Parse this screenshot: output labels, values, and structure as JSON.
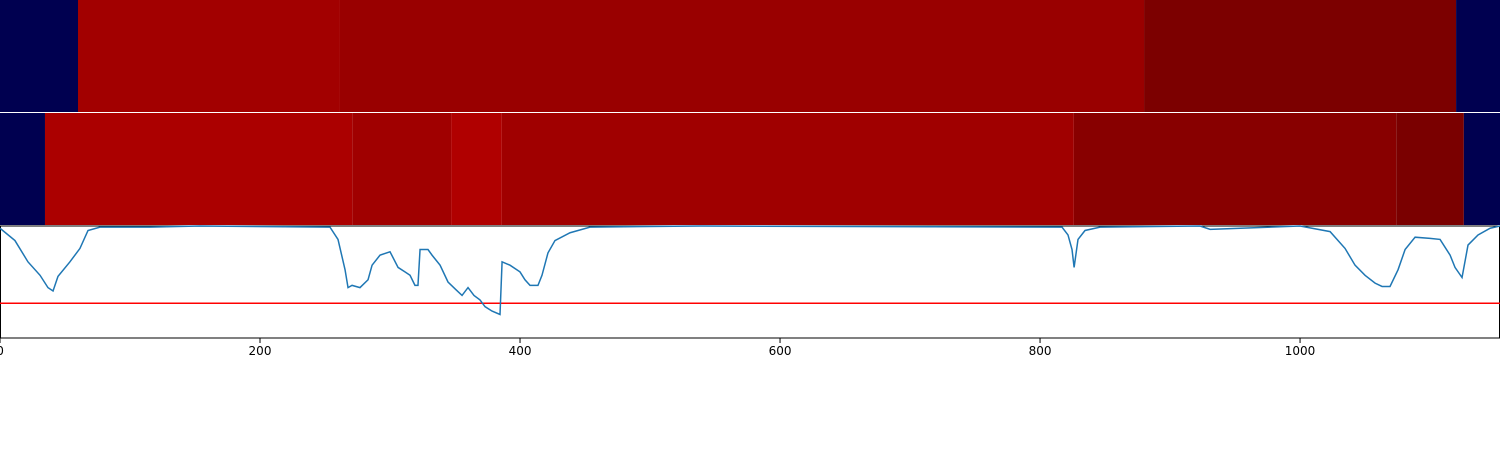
{
  "chart_data": [
    {
      "type": "heatmap",
      "bins": [
        0,
        60,
        261.5,
        880,
        1120,
        1153.8
      ],
      "colors": [
        "#000050",
        "#a20000",
        "#990000",
        "#7c0000",
        "#000050"
      ]
    },
    {
      "type": "heatmap",
      "bins": [
        0,
        34.6,
        271,
        347,
        386,
        826,
        1074,
        1126,
        1153.8
      ],
      "colors": [
        "#000050",
        "#ab0000",
        "#a00000",
        "#b00000",
        "#a00000",
        "#880000",
        "#7a0000",
        "#000050"
      ]
    },
    {
      "type": "line",
      "x": [
        0,
        11.5,
        21.5,
        30.8,
        36.9,
        40.8,
        44.6,
        53.8,
        61.5,
        67.7,
        76.9,
        115.4,
        153.8,
        253.8,
        260,
        265.4,
        267.7,
        270.8,
        276.9,
        283.1,
        286.2,
        292.3,
        300,
        306.2,
        311.5,
        315.4,
        319.2,
        321.5,
        323.1,
        329.2,
        332.3,
        338.5,
        344.6,
        350.8,
        355.4,
        360,
        364.6,
        369.2,
        373.1,
        378.5,
        384.6,
        386.2,
        392.3,
        400,
        403.8,
        407.7,
        413.8,
        416.9,
        421.5,
        426.9,
        438.5,
        453.8,
        538.5,
        816.9,
        821.5,
        824.6,
        826.2,
        829.2,
        834.6,
        846.2,
        923.1,
        930.8,
        1000,
        1023.1,
        1034.6,
        1042.3,
        1050,
        1057.7,
        1063.1,
        1069.2,
        1075.4,
        1080.8,
        1088.5,
        1100,
        1107.7,
        1115.4,
        1119.2,
        1124.6,
        1129.2,
        1136.9,
        1146.2,
        1153.8
      ],
      "series": [
        {
          "color": "#1f77b4",
          "values": [
            0.98,
            0.87,
            0.68,
            0.56,
            0.45,
            0.42,
            0.55,
            0.68,
            0.8,
            0.96,
            0.99,
            0.99,
            1.0,
            0.99,
            0.88,
            0.61,
            0.45,
            0.47,
            0.45,
            0.52,
            0.65,
            0.74,
            0.77,
            0.63,
            0.59,
            0.56,
            0.47,
            0.47,
            0.79,
            0.79,
            0.74,
            0.65,
            0.5,
            0.43,
            0.38,
            0.45,
            0.38,
            0.34,
            0.28,
            0.24,
            0.21,
            0.68,
            0.65,
            0.59,
            0.52,
            0.47,
            0.47,
            0.56,
            0.76,
            0.87,
            0.94,
            0.99,
            1.0,
            0.99,
            0.92,
            0.79,
            0.63,
            0.88,
            0.96,
            0.99,
            1.0,
            0.97,
            1.0,
            0.95,
            0.8,
            0.65,
            0.56,
            0.49,
            0.46,
            0.46,
            0.61,
            0.79,
            0.9,
            0.89,
            0.88,
            0.74,
            0.63,
            0.54,
            0.83,
            0.92,
            0.98,
            1.0
          ]
        }
      ],
      "threshold": 0.31,
      "threshold_color": "#ff0000",
      "xlim": [
        0,
        1153.8
      ],
      "ylim": [
        0,
        1
      ],
      "xticks": [
        0,
        200,
        400,
        600,
        800,
        1000
      ]
    }
  ]
}
